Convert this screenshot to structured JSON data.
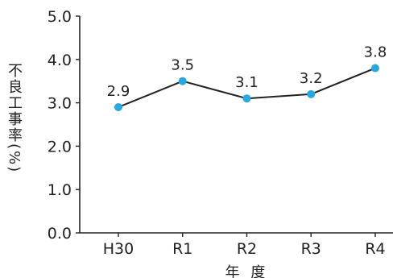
{
  "chart_data": {
    "type": "line",
    "categories": [
      "H30",
      "R1",
      "R2",
      "R3",
      "R4"
    ],
    "series": [
      {
        "values": [
          2.9,
          3.5,
          3.1,
          3.2,
          3.8
        ]
      }
    ],
    "data_labels": [
      "2.9",
      "3.5",
      "3.1",
      "3.2",
      "3.8"
    ],
    "yticks": [
      "0.0",
      "1.0",
      "2.0",
      "3.0",
      "4.0",
      "5.0"
    ],
    "ylim": [
      0,
      5
    ],
    "xlabel": "年 度",
    "ylabel": "不良工事率(%)",
    "grid": false,
    "colors": {
      "line": "#222222",
      "marker": "#29a8e0",
      "axis": "#222222"
    }
  }
}
